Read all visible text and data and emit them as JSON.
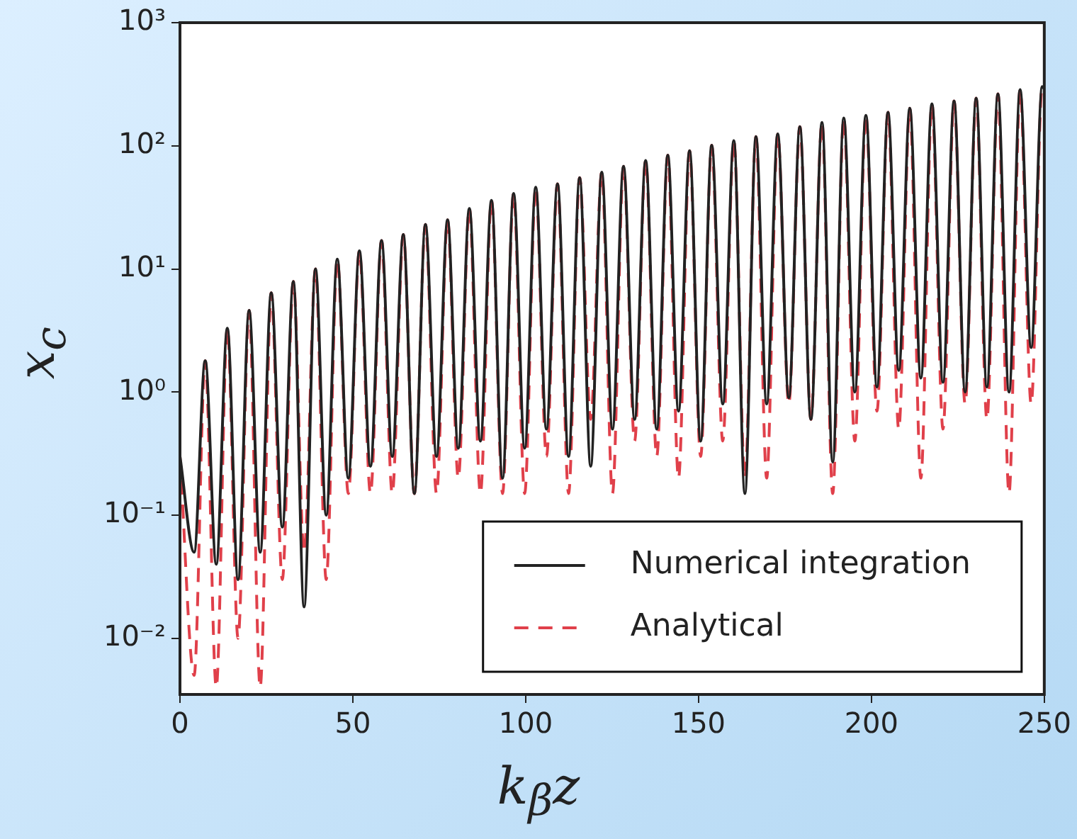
{
  "chart_data": {
    "type": "line",
    "xlabel": "k$_{β}$z",
    "ylabel": "x$_{c}$",
    "log": "y",
    "grid": false,
    "legend": "bottom right",
    "marker": "none",
    "xlim": [
      0,
      250
    ],
    "xticks": [
      0,
      50,
      100,
      150,
      200,
      250
    ],
    "ylim": [
      0.0035,
      1000
    ],
    "yticks": [
      {
        "value": 0.01,
        "label": "10⁻²"
      },
      {
        "value": 0.1,
        "label": "10⁻¹"
      },
      {
        "value": 1,
        "label": "10⁰"
      },
      {
        "value": 10,
        "label": "10¹"
      },
      {
        "value": 100,
        "label": "10²"
      },
      {
        "value": 1000,
        "label": "10³"
      }
    ],
    "x": [
      0,
      4.1,
      7.3,
      10.5,
      13.7,
      16.8,
      20.0,
      23.2,
      26.4,
      29.6,
      32.8,
      35.9,
      39.2,
      42.3,
      45.5,
      48.7,
      51.9,
      55.1,
      58.3,
      61.4,
      64.6,
      67.8,
      71.0,
      74.2,
      77.4,
      80.5,
      83.7,
      86.9,
      90.1,
      93.3,
      96.5,
      99.7,
      102.9,
      106.0,
      109.2,
      112.4,
      115.6,
      118.8,
      122.0,
      125.1,
      128.3,
      131.5,
      134.7,
      137.9,
      141.1,
      144.2,
      147.4,
      150.6,
      153.8,
      157.0,
      160.2,
      163.4,
      166.6,
      169.7,
      172.9,
      176.1,
      179.3,
      182.5,
      185.7,
      188.8,
      192.0,
      195.2,
      198.4,
      201.6,
      204.8,
      207.9,
      211.1,
      214.3,
      217.5,
      220.7,
      223.9,
      227.1,
      230.3,
      233.4,
      236.6,
      239.8,
      243.0,
      246.2,
      249.4,
      250
    ],
    "series": [
      {
        "name": "Numerical integration",
        "color": "#222222",
        "line_style": "solid",
        "values": [
          0.3,
          0.05,
          1.8,
          0.04,
          3.3,
          0.03,
          4.6,
          0.05,
          6.4,
          0.08,
          7.9,
          0.018,
          10,
          0.1,
          12,
          0.2,
          14,
          0.25,
          17,
          0.3,
          19,
          0.15,
          23,
          0.3,
          25,
          0.35,
          31,
          0.4,
          36,
          0.2,
          41,
          0.35,
          46,
          0.5,
          49,
          0.3,
          55,
          0.25,
          61,
          0.5,
          68,
          0.6,
          76,
          0.5,
          84,
          0.7,
          91,
          0.4,
          101,
          0.8,
          110,
          0.15,
          119,
          0.8,
          125,
          0.9,
          143,
          0.6,
          155,
          0.27,
          168,
          1.0,
          177,
          1.1,
          187,
          1.5,
          202,
          1.3,
          219,
          1.2,
          231,
          1.0,
          244,
          1.1,
          264,
          1.0,
          286,
          2.3,
          302,
          290
        ]
      },
      {
        "name": "Analytical",
        "color": "#e0404a",
        "line_style": "dashed",
        "values": [
          0.3,
          0.005,
          1.8,
          0.004,
          3.3,
          0.01,
          4.6,
          0.004,
          6.4,
          0.03,
          7.9,
          0.05,
          10,
          0.03,
          12,
          0.15,
          14,
          0.15,
          17,
          0.15,
          19,
          0.15,
          23,
          0.15,
          25,
          0.2,
          31,
          0.15,
          36,
          0.15,
          41,
          0.15,
          46,
          0.3,
          49,
          0.15,
          55,
          0.6,
          61,
          0.15,
          68,
          0.4,
          76,
          0.3,
          84,
          0.2,
          91,
          0.3,
          101,
          0.4,
          110,
          0.2,
          119,
          0.2,
          125,
          0.8,
          143,
          0.6,
          155,
          0.15,
          168,
          0.4,
          177,
          0.7,
          187,
          0.5,
          202,
          0.2,
          219,
          0.5,
          231,
          0.8,
          244,
          0.6,
          264,
          0.15,
          286,
          0.8,
          302,
          290
        ]
      }
    ]
  }
}
